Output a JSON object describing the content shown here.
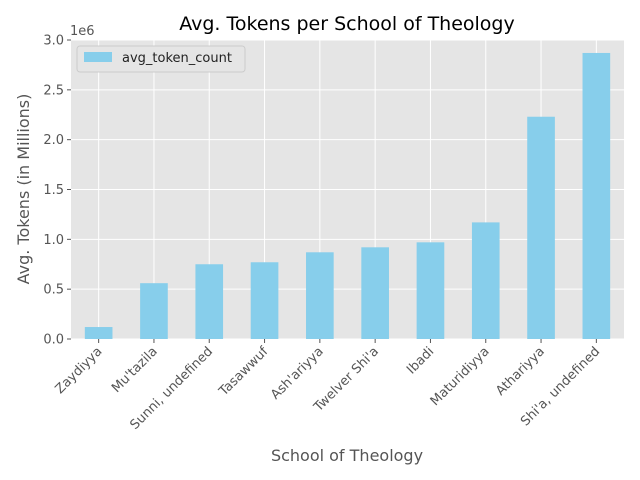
{
  "chart_data": {
    "type": "bar",
    "title": "Avg. Tokens per School of Theology",
    "xlabel": "School of Theology",
    "ylabel": "Avg. Tokens (in Millions)",
    "y_offset_label": "1e6",
    "categories": [
      "Zaydiyya",
      "Mu'tazila",
      "Sunni, undefined",
      "Tasawwuf",
      "Ash'ariyya",
      "Twelver Shi'a",
      "Ibadi",
      "Maturidiyya",
      "Athariyya",
      "Shi'a, undefined"
    ],
    "series": [
      {
        "name": "avg_token_count",
        "values": [
          0.12,
          0.56,
          0.75,
          0.77,
          0.87,
          0.92,
          0.97,
          1.17,
          2.23,
          2.87
        ],
        "color": "#87ceeb"
      }
    ],
    "ylim": [
      0,
      3.0
    ],
    "yticks": [
      0.0,
      0.5,
      1.0,
      1.5,
      2.0,
      2.5,
      3.0
    ],
    "ytick_labels": [
      "0.0",
      "0.5",
      "1.0",
      "1.5",
      "2.0",
      "2.5",
      "3.0"
    ],
    "grid": true,
    "legend_position": "top-left",
    "plot_background": "#e5e5e5",
    "grid_color": "#ffffff"
  }
}
